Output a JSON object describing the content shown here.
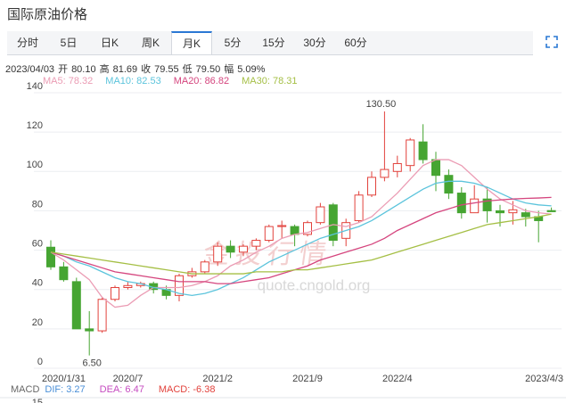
{
  "title": "国际原油价格",
  "tabs": [
    "分时",
    "5日",
    "日K",
    "周K",
    "月K",
    "5分",
    "15分",
    "30分",
    "60分"
  ],
  "active_tab": "月K",
  "info": {
    "date": "2023/04/03",
    "fields": [
      {
        "label": "开",
        "value": "80.10"
      },
      {
        "label": "高",
        "value": "81.69"
      },
      {
        "label": "收",
        "value": "79.55"
      },
      {
        "label": "低",
        "value": "79.50"
      },
      {
        "label": "幅",
        "value": "5.09%"
      }
    ]
  },
  "watermark": {
    "name": "金投行情",
    "url": "quote.cngold.org"
  },
  "chart_data": {
    "type": "candlestick",
    "categories": [
      "2020/1/31",
      null,
      null,
      null,
      null,
      null,
      "2020/7",
      null,
      null,
      null,
      null,
      null,
      null,
      "2021/2",
      null,
      null,
      null,
      null,
      null,
      null,
      "2021/9",
      null,
      null,
      null,
      null,
      null,
      null,
      "2022/4",
      null,
      null,
      null,
      null,
      null,
      null,
      null,
      null,
      null,
      null,
      null,
      "2023/4/3"
    ],
    "open": [
      61.5,
      51.5,
      44,
      20,
      19,
      35,
      41,
      42,
      43,
      40,
      37,
      47,
      49,
      54,
      62,
      59,
      62,
      65,
      72,
      72,
      68,
      74,
      83,
      66,
      75,
      88,
      97,
      100,
      103,
      115,
      106,
      98,
      89,
      79,
      86,
      80,
      79,
      79,
      77,
      80.1
    ],
    "high": [
      65,
      54,
      46,
      29,
      36,
      42,
      44,
      44,
      44,
      42,
      48,
      51,
      55,
      64,
      65,
      63,
      66,
      73,
      75,
      73,
      75,
      84,
      84,
      76,
      90,
      100,
      130.5,
      108,
      117,
      124,
      110,
      101,
      92,
      93,
      92,
      83,
      85,
      81,
      80,
      81.69
    ],
    "low": [
      50,
      44,
      20,
      6.5,
      18,
      34,
      40,
      41,
      38,
      35,
      34,
      46,
      48,
      52,
      56,
      57,
      60,
      64,
      66,
      62,
      67,
      73,
      62,
      62,
      74,
      87,
      95,
      97,
      100,
      104,
      90,
      86,
      76,
      79,
      74,
      72,
      73,
      72,
      64,
      79.5
    ],
    "close": [
      51.5,
      45,
      20,
      19,
      35,
      41,
      42,
      43,
      40,
      37,
      47,
      49,
      54,
      62,
      59,
      62,
      65,
      72,
      72.5,
      68,
      74,
      82,
      65,
      74,
      88,
      97,
      101,
      104,
      116,
      106,
      98,
      89,
      79,
      86,
      80,
      79,
      80.5,
      77,
      75,
      79.55
    ],
    "up_color": "#e2423c",
    "down_color": "#46a532",
    "high_label": {
      "value": 130.5,
      "label": "130.50"
    },
    "low_label": {
      "value": 6.5,
      "label": "6.50"
    },
    "series": [
      {
        "name": "MA5",
        "last": "78.32",
        "color": "#eb9cb4",
        "values": [
          59,
          55,
          50,
          45,
          36,
          31,
          32,
          37,
          41,
          41,
          41,
          42,
          44,
          47,
          52,
          55,
          59,
          62,
          66,
          68,
          69,
          71,
          73,
          72,
          74,
          77,
          83,
          89,
          96,
          103,
          106,
          106,
          103,
          97,
          91,
          86,
          83,
          80,
          79,
          78.32
        ]
      },
      {
        "name": "MA10",
        "last": "82.53",
        "color": "#5cc4dc",
        "values": [
          59,
          57,
          54,
          52,
          49,
          46,
          44,
          43,
          41,
          40,
          38,
          37,
          38,
          40,
          43,
          46,
          50,
          54,
          57,
          60,
          63,
          66,
          68,
          70,
          72,
          75,
          79,
          83,
          87,
          91,
          94,
          95,
          95,
          94,
          92,
          89,
          86,
          84,
          83,
          82.53
        ]
      },
      {
        "name": "MA20",
        "last": "86.82",
        "color": "#d5457e",
        "values": [
          59,
          57,
          55,
          53,
          51,
          49,
          48,
          47,
          46,
          45,
          44,
          44,
          44,
          43,
          43,
          44,
          45,
          46,
          48,
          50,
          52,
          55,
          57,
          59,
          61,
          63,
          66,
          70,
          73,
          76,
          79,
          81,
          83,
          84,
          85,
          85.5,
          86,
          86.3,
          86.5,
          86.82
        ]
      },
      {
        "name": "MA30",
        "last": "78.31",
        "color": "#a5bf45",
        "values": [
          59,
          58,
          57,
          56,
          55,
          54,
          53,
          52,
          51,
          50,
          49,
          48,
          48,
          48,
          48,
          48,
          49,
          49,
          49,
          50,
          50,
          51,
          52,
          53,
          54,
          55,
          57,
          59,
          61,
          63,
          65,
          67,
          69,
          71,
          73,
          74,
          75,
          76,
          77,
          78.31
        ]
      }
    ],
    "ylim": [
      0,
      140
    ],
    "yticks": [
      0,
      20,
      40,
      60,
      80,
      100,
      120,
      140
    ],
    "grid": true
  },
  "macd": {
    "title": "MACD",
    "axis_top": "15",
    "items": [
      {
        "name": "DIF",
        "value": "3.27",
        "color": "#4a8fd8"
      },
      {
        "name": "DEA",
        "value": "6.47",
        "color": "#c54bc0"
      },
      {
        "name": "MACD",
        "value": "-6.38",
        "color": "#e2423c"
      }
    ]
  }
}
